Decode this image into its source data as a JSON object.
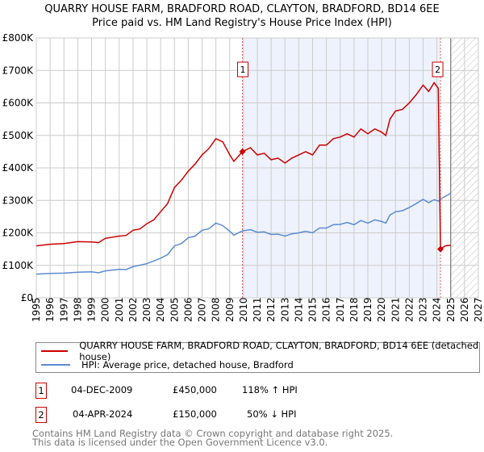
{
  "title": "QUARRY HOUSE FARM, BRADFORD ROAD, CLAYTON, BRADFORD, BD14 6EE",
  "subtitle": "Price paid vs. HM Land Registry's House Price Index (HPI)",
  "chart_data": {
    "type": "line",
    "title": "QUARRY HOUSE FARM, BRADFORD ROAD, CLAYTON, BRADFORD, BD14 6EE",
    "xlim": [
      1995,
      2027
    ],
    "ylim": [
      0,
      800000
    ],
    "x_ticks": [
      "1995",
      "1996",
      "1997",
      "1998",
      "1999",
      "2000",
      "2001",
      "2002",
      "2003",
      "2004",
      "2005",
      "2006",
      "2007",
      "2008",
      "2009",
      "2010",
      "2011",
      "2012",
      "2013",
      "2014",
      "2015",
      "2016",
      "2017",
      "2018",
      "2019",
      "2020",
      "2021",
      "2022",
      "2023",
      "2024",
      "2025",
      "2026",
      "2027"
    ],
    "y_ticks": [
      {
        "v": 0,
        "label": "£0"
      },
      {
        "v": 100000,
        "label": "£100K"
      },
      {
        "v": 200000,
        "label": "£200K"
      },
      {
        "v": 300000,
        "label": "£300K"
      },
      {
        "v": 400000,
        "label": "£400K"
      },
      {
        "v": 500000,
        "label": "£500K"
      },
      {
        "v": 600000,
        "label": "£600K"
      },
      {
        "v": 700000,
        "label": "£700K"
      },
      {
        "v": 800000,
        "label": "£800K"
      }
    ],
    "grid": true,
    "shaded_period": [
      2009.92,
      2024.26
    ],
    "forecast_hatch_from": 2025.0,
    "series": [
      {
        "name": "QUARRY HOUSE FARM, BRADFORD ROAD, CLAYTON, BRADFORD, BD14 6EE (detached house)",
        "color": "#cc0000",
        "x": [
          1995,
          1996,
          1997,
          1998,
          1999,
          1999.5,
          2000,
          2001,
          2001.5,
          2002,
          2002.5,
          2003,
          2003.5,
          2004,
          2004.5,
          2005,
          2005.5,
          2006,
          2006.5,
          2007,
          2007.5,
          2008,
          2008.5,
          2009,
          2009.3,
          2009.92,
          2010.5,
          2011,
          2011.5,
          2012,
          2012.5,
          2013,
          2013.5,
          2014,
          2014.5,
          2015,
          2015.5,
          2016,
          2016.5,
          2017,
          2017.5,
          2018,
          2018.5,
          2019,
          2019.5,
          2020,
          2020.3,
          2020.6,
          2021,
          2021.5,
          2022,
          2022.5,
          2023,
          2023.4,
          2023.8,
          2024.1,
          2024.26,
          2024.6,
          2025
        ],
        "y": [
          160000,
          165000,
          167000,
          173000,
          172000,
          170000,
          183000,
          190000,
          192000,
          208000,
          212000,
          228000,
          240000,
          265000,
          290000,
          340000,
          362000,
          390000,
          412000,
          440000,
          460000,
          490000,
          480000,
          440000,
          420000,
          450000,
          462000,
          440000,
          445000,
          425000,
          430000,
          415000,
          430000,
          440000,
          450000,
          440000,
          470000,
          470000,
          490000,
          495000,
          505000,
          495000,
          520000,
          505000,
          520000,
          510000,
          500000,
          550000,
          575000,
          580000,
          600000,
          625000,
          655000,
          635000,
          662000,
          645000,
          150000,
          160000,
          162000
        ]
      },
      {
        "name": "HPI: Average price, detached house, Bradford",
        "color": "#5b8bd0",
        "x": [
          1995,
          1996,
          1997,
          1998,
          1999,
          1999.5,
          2000,
          2001,
          2001.5,
          2002,
          2003,
          2004,
          2004.5,
          2005,
          2005.5,
          2006,
          2006.5,
          2007,
          2007.5,
          2008,
          2008.5,
          2009,
          2009.3,
          2009.92,
          2010.5,
          2011,
          2011.5,
          2012,
          2012.5,
          2013,
          2013.5,
          2014,
          2014.5,
          2015,
          2015.5,
          2016,
          2016.5,
          2017,
          2017.5,
          2018,
          2018.5,
          2019,
          2019.5,
          2020,
          2020.3,
          2020.6,
          2021,
          2021.5,
          2022,
          2022.5,
          2023,
          2023.4,
          2023.8,
          2024.1,
          2024.5,
          2025
        ],
        "y": [
          73000,
          75000,
          76000,
          79000,
          80000,
          77000,
          83000,
          88000,
          87000,
          96000,
          105000,
          122000,
          133000,
          160000,
          167000,
          185000,
          190000,
          208000,
          213000,
          230000,
          222000,
          205000,
          193000,
          206000,
          210000,
          202000,
          203000,
          195000,
          196000,
          190000,
          197000,
          200000,
          205000,
          200000,
          215000,
          215000,
          225000,
          226000,
          232000,
          225000,
          238000,
          230000,
          240000,
          235000,
          230000,
          255000,
          265000,
          268000,
          278000,
          290000,
          303000,
          293000,
          302000,
          298000,
          310000,
          322000
        ]
      }
    ],
    "annotations": [
      {
        "label": "1",
        "x": 2009.92,
        "y": 450000
      },
      {
        "label": "2",
        "x": 2024.26,
        "y": 150000
      }
    ]
  },
  "legend": [
    {
      "label": "QUARRY HOUSE FARM, BRADFORD ROAD, CLAYTON, BRADFORD, BD14 6EE (detached house)",
      "color": "#cc0000"
    },
    {
      "label": "HPI: Average price, detached house, Bradford",
      "color": "#5b8bd0"
    }
  ],
  "transactions": [
    {
      "num": "1",
      "date": "04-DEC-2009",
      "price": "£450,000",
      "hpi": "118% ↑ HPI"
    },
    {
      "num": "2",
      "date": "04-APR-2024",
      "price": "£150,000",
      "hpi": "50% ↓ HPI"
    }
  ],
  "footer": {
    "line1": "Contains HM Land Registry data © Crown copyright and database right 2025.",
    "line2": "This data is licensed under the Open Government Licence v3.0."
  }
}
